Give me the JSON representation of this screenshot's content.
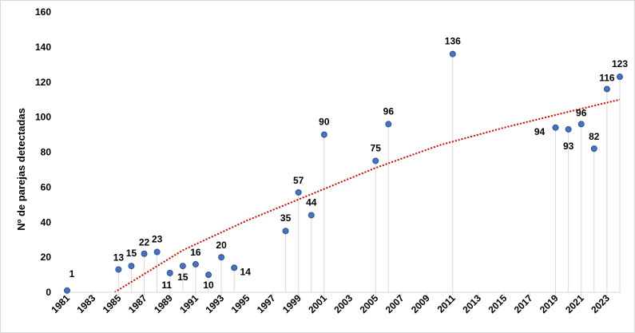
{
  "chart_data": {
    "type": "scatter",
    "title": "",
    "xlabel": "",
    "ylabel": "Nº de parejas detectadas",
    "xlim": [
      1981,
      2024
    ],
    "ylim": [
      0,
      160
    ],
    "y_ticks": [
      0,
      20,
      40,
      60,
      80,
      100,
      120,
      140,
      160
    ],
    "x_ticks": [
      1981,
      1983,
      1985,
      1987,
      1989,
      1991,
      1993,
      1995,
      1997,
      1999,
      2001,
      2003,
      2005,
      2007,
      2009,
      2011,
      2013,
      2015,
      2017,
      2019,
      2021,
      2023
    ],
    "grid": false,
    "marker_color": "#4472c4",
    "marker_edge": "#2f528f",
    "drop_line_color": "#d9d9d9",
    "trend_color": "#e00000",
    "series": [
      {
        "points": [
          {
            "x": 1981,
            "y": 1,
            "label": "1"
          },
          {
            "x": 1985,
            "y": 13,
            "label": "13"
          },
          {
            "x": 1986,
            "y": 15,
            "label": "15"
          },
          {
            "x": 1987,
            "y": 22,
            "label": "22"
          },
          {
            "x": 1988,
            "y": 23,
            "label": "23"
          },
          {
            "x": 1989,
            "y": 11,
            "label": "11"
          },
          {
            "x": 1990,
            "y": 15,
            "label": "15"
          },
          {
            "x": 1991,
            "y": 16,
            "label": "16"
          },
          {
            "x": 1992,
            "y": 10,
            "label": "10"
          },
          {
            "x": 1993,
            "y": 20,
            "label": "20"
          },
          {
            "x": 1994,
            "y": 14,
            "label": "14"
          },
          {
            "x": 1998,
            "y": 35,
            "label": "35"
          },
          {
            "x": 1999,
            "y": 57,
            "label": "57"
          },
          {
            "x": 2000,
            "y": 44,
            "label": "44"
          },
          {
            "x": 2001,
            "y": 90,
            "label": "90"
          },
          {
            "x": 2005,
            "y": 75,
            "label": "75"
          },
          {
            "x": 2006,
            "y": 96,
            "label": "96"
          },
          {
            "x": 2011,
            "y": 136,
            "label": "136"
          },
          {
            "x": 2019,
            "y": 94,
            "label": "94"
          },
          {
            "x": 2020,
            "y": 93,
            "label": "93"
          },
          {
            "x": 2021,
            "y": 96,
            "label": "96"
          },
          {
            "x": 2022,
            "y": 82,
            "label": "82"
          },
          {
            "x": 2023,
            "y": 116,
            "label": "116"
          },
          {
            "x": 2024,
            "y": 123,
            "label": "123"
          }
        ]
      }
    ],
    "trendline": {
      "type": "polynomial",
      "points": [
        {
          "x": 1984.7,
          "y": 0
        },
        {
          "x": 1990,
          "y": 24
        },
        {
          "x": 1995,
          "y": 41
        },
        {
          "x": 2000,
          "y": 56
        },
        {
          "x": 2005,
          "y": 71
        },
        {
          "x": 2010,
          "y": 84
        },
        {
          "x": 2015,
          "y": 94
        },
        {
          "x": 2020,
          "y": 103
        },
        {
          "x": 2024,
          "y": 110
        }
      ]
    }
  }
}
